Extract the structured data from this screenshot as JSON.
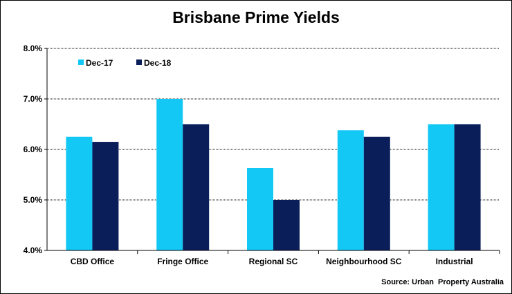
{
  "chart_data": {
    "type": "bar",
    "title": "Brisbane Prime Yields",
    "categories": [
      "CBD Office",
      "Fringe Office",
      "Regional SC",
      "Neighbourhood SC",
      "Industrial"
    ],
    "series": [
      {
        "name": "Dec-17",
        "color": "#14C8F5",
        "values": [
          6.25,
          7.0,
          5.63,
          6.38,
          6.5
        ]
      },
      {
        "name": "Dec-18",
        "color": "#0A1E5A",
        "values": [
          6.15,
          6.5,
          5.0,
          6.25,
          6.5
        ]
      }
    ],
    "ylim": [
      4.0,
      8.0
    ],
    "yticks": [
      "4.0%",
      "5.0%",
      "6.0%",
      "7.0%",
      "8.0%"
    ],
    "grid": true,
    "legend_position": "top-left",
    "source": "Source: Urban  Property Australia"
  }
}
